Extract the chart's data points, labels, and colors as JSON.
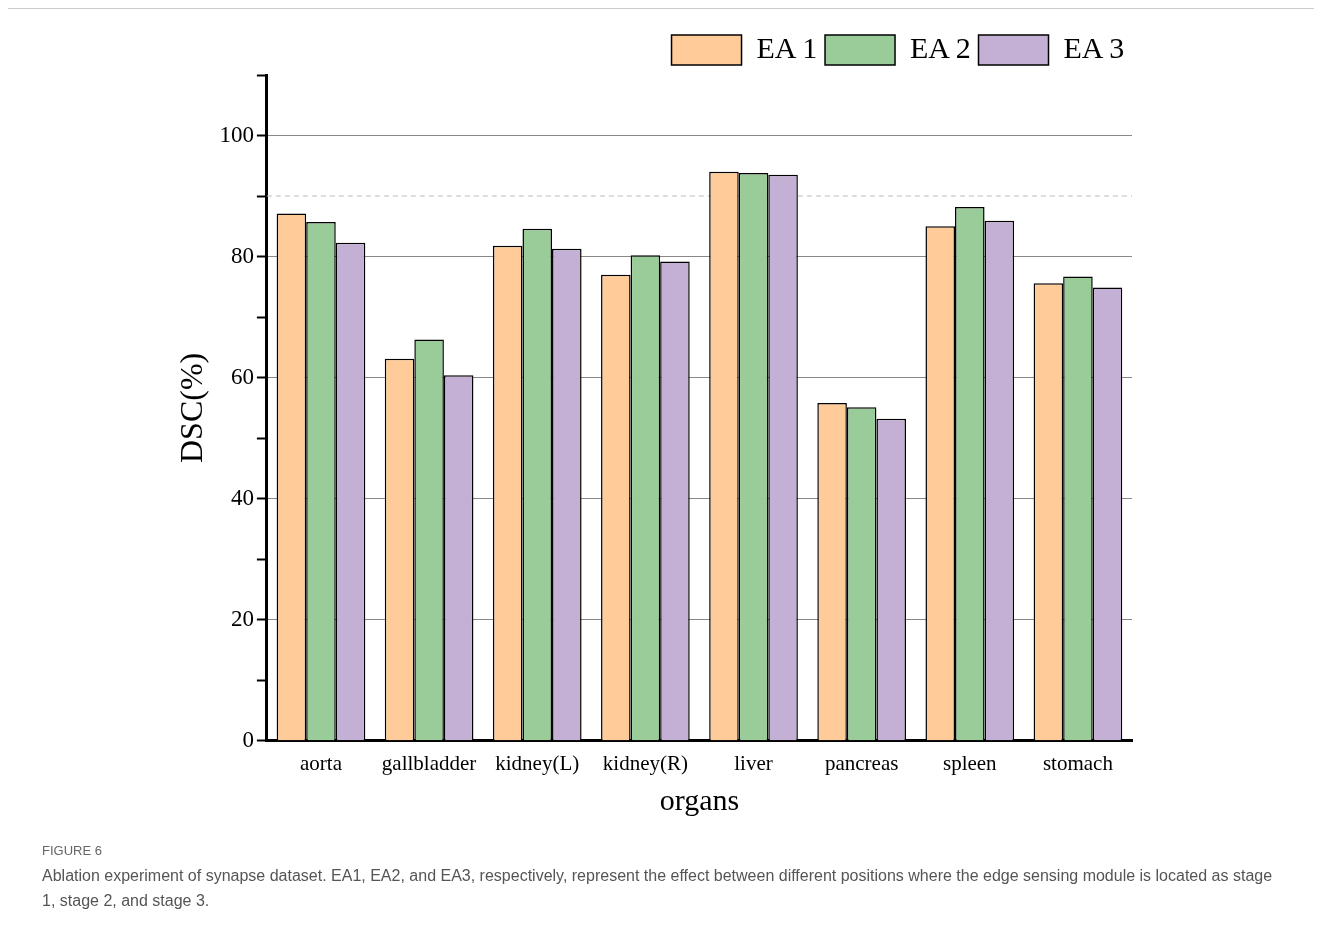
{
  "chart_data": {
    "type": "bar",
    "xlabel": "organs",
    "ylabel": "DSC(%)",
    "categories": [
      "aorta",
      "gallbladder",
      "kidney(L)",
      "kidney(R)",
      "liver",
      "pancreas",
      "spleen",
      "stomach"
    ],
    "series": [
      {
        "name": "EA 1",
        "color": "#ffcc99",
        "values": [
          87.1,
          63.1,
          81.8,
          77.0,
          94.0,
          55.8,
          85.0,
          75.6
        ]
      },
      {
        "name": "EA 2",
        "color": "#99cc99",
        "values": [
          85.7,
          66.3,
          84.6,
          80.2,
          93.8,
          55.1,
          88.2,
          76.7
        ]
      },
      {
        "name": "EA 3",
        "color": "#c4b0d5",
        "values": [
          82.3,
          60.4,
          81.3,
          79.2,
          93.5,
          53.2,
          85.9,
          74.9
        ]
      }
    ],
    "ylim": [
      0,
      110
    ],
    "yticks": [
      0,
      {
        "value": 10,
        "label": null
      },
      20,
      {
        "value": 30,
        "label": null
      },
      40,
      {
        "value": 50,
        "label": null
      },
      60,
      {
        "value": 70,
        "label": null
      },
      80,
      {
        "value": 90,
        "label": null
      },
      100,
      {
        "value": 110,
        "label": null
      }
    ],
    "ref_lines": [
      {
        "axis": "y",
        "value": 90,
        "line_style": "dashed",
        "color": "#bbbbbb"
      }
    ],
    "grid": "y",
    "legend": "top right",
    "annotations": [
      "FIGURE 6",
      "Ablation experiment of synapse dataset. EA1, EA2, and EA3, respectively, represent the effect between different positions where the edge sensing module is located as stage 1, stage 2, and stage 3."
    ]
  }
}
